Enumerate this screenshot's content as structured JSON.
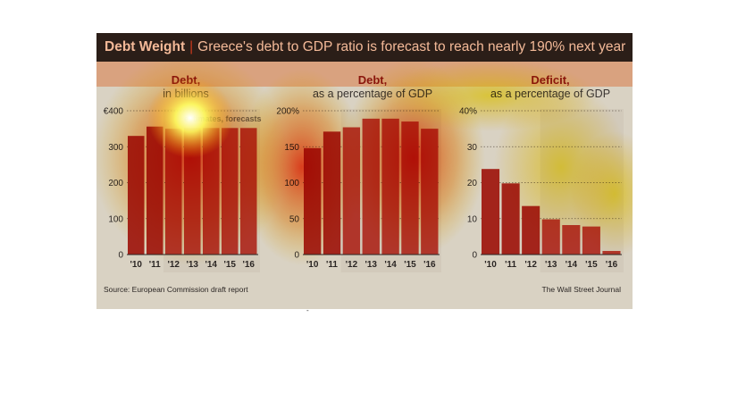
{
  "header": {
    "title_bold": "Debt Weight",
    "title_sep": "|",
    "title_rest": "Greece's debt to GDP ratio is forecast to reach nearly 190% next year"
  },
  "footer": {
    "source": "Source: European Commission draft report",
    "credit": "The Wall Street Journal"
  },
  "colors": {
    "bar_actual": "#a3241b",
    "bar_forecast": "#b0352a",
    "forecast_band": "#cfc7b8",
    "background": "#d9d2c3"
  },
  "chart_data": [
    {
      "type": "bar",
      "title": "Debt,",
      "subtitle": "in billions",
      "annotation": "estimates, forecasts",
      "categories": [
        "'10",
        "'11",
        "'12",
        "'13",
        "'14",
        "'15",
        "'16"
      ],
      "values": [
        330,
        356,
        350,
        352,
        352,
        352,
        352
      ],
      "ylim": [
        0,
        400
      ],
      "yticks": [
        "0",
        "100",
        "200",
        "300",
        "€400"
      ],
      "forecast_from_index": 2,
      "grid": true
    },
    {
      "type": "bar",
      "title": "Debt,",
      "subtitle": "as a percentage of GDP",
      "categories": [
        "'10",
        "'11",
        "'12",
        "'13",
        "'14",
        "'15",
        "'16"
      ],
      "values": [
        148,
        171,
        177,
        189,
        189,
        185,
        175
      ],
      "ylim": [
        0,
        200
      ],
      "yticks": [
        "0",
        "50",
        "100",
        "150",
        "200%"
      ],
      "forecast_from_index": 2,
      "grid": true
    },
    {
      "type": "bar",
      "title": "Deficit,",
      "subtitle": "as a percentage of GDP",
      "categories": [
        "'10",
        "'11",
        "'12",
        "'13",
        "'14",
        "'15",
        "'16"
      ],
      "values": [
        23.8,
        19.8,
        13.5,
        9.8,
        8.2,
        7.8,
        1.0
      ],
      "ylim": [
        0,
        40
      ],
      "yticks": [
        "0",
        "10",
        "20",
        "30",
        "40%"
      ],
      "forecast_from_index": 3,
      "grid": true
    }
  ]
}
